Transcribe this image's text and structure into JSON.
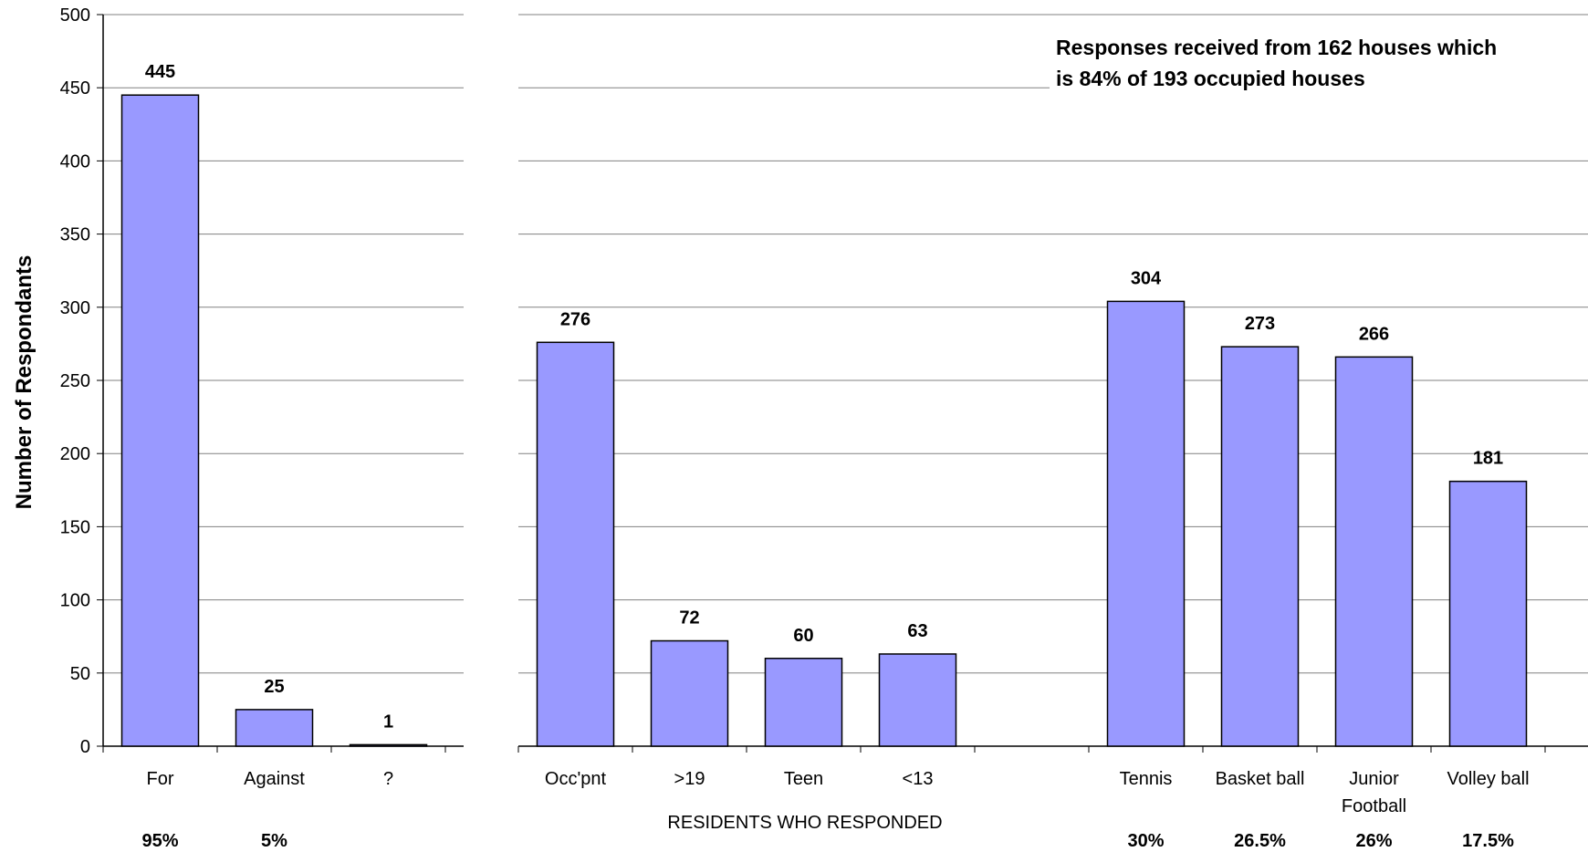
{
  "chart_data": [
    {
      "type": "bar",
      "categories": [
        "For",
        "Against",
        "?"
      ],
      "values": [
        445,
        25,
        1
      ],
      "percent_labels": [
        "95%",
        "5%",
        ""
      ],
      "ylabel": "Number of Respondants",
      "ylim": [
        0,
        500
      ],
      "yticks": [
        0,
        50,
        100,
        150,
        200,
        250,
        300,
        350,
        400,
        450,
        500
      ],
      "grid": true,
      "bar_color": "#9999ff"
    },
    {
      "type": "bar",
      "categories": [
        "Occ'pnt",
        ">19",
        "Teen",
        "<13",
        "",
        "Tennis",
        "Basket ball",
        "Junior Football",
        "Volley ball"
      ],
      "category_lines": [
        [
          "Occ'pnt"
        ],
        [
          ">19"
        ],
        [
          "Teen"
        ],
        [
          "<13"
        ],
        [],
        [
          "Tennis"
        ],
        [
          "Basket ball"
        ],
        [
          "Junior",
          "Football"
        ],
        [
          "Volley ball"
        ]
      ],
      "values": [
        276,
        72,
        60,
        63,
        null,
        304,
        273,
        266,
        181
      ],
      "percent_labels": [
        "",
        "",
        "",
        "",
        "",
        "30%",
        "26.5%",
        "26%",
        "17.5%"
      ],
      "xlabel": "RESIDENTS WHO RESPONDED",
      "annotation": [
        "Responses received from 162 houses which",
        "is 84% of 193 occupied houses"
      ],
      "ylim": [
        0,
        500
      ],
      "grid": true,
      "bar_color": "#9999ff"
    }
  ]
}
